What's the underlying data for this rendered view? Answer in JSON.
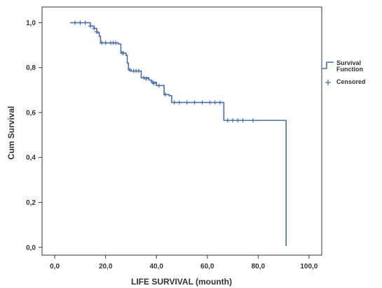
{
  "chart_data": {
    "type": "line",
    "title": "",
    "xlabel": "LIFE SURVIVAL (mounth)",
    "ylabel": "Cum Survival",
    "xlim": [
      -5,
      105
    ],
    "ylim": [
      -0.035,
      1.07
    ],
    "x_ticks": [
      0,
      20,
      40,
      60,
      80,
      100
    ],
    "x_tick_labels": [
      "0,0",
      "20,0",
      "40,0",
      "60,0",
      "80,0",
      "100,0"
    ],
    "y_ticks": [
      0,
      0.2,
      0.4,
      0.6,
      0.8,
      1.0
    ],
    "y_tick_labels": [
      "0,0",
      "0,2",
      "0,4",
      "0,6",
      "0,8",
      "1,0"
    ],
    "grid": false,
    "legend_position": "right",
    "series": [
      {
        "name": "Survival Function",
        "steps": [
          [
            6,
            1.0
          ],
          [
            14,
            0.985
          ],
          [
            15.5,
            0.975
          ],
          [
            16.5,
            0.955
          ],
          [
            17.5,
            0.94
          ],
          [
            18,
            0.91
          ],
          [
            25,
            0.905
          ],
          [
            26,
            0.865
          ],
          [
            28,
            0.855
          ],
          [
            28.5,
            0.82
          ],
          [
            29,
            0.79
          ],
          [
            30,
            0.785
          ],
          [
            34,
            0.755
          ],
          [
            37,
            0.745
          ],
          [
            38,
            0.735
          ],
          [
            40,
            0.72
          ],
          [
            43,
            0.68
          ],
          [
            45,
            0.675
          ],
          [
            46,
            0.645
          ],
          [
            66.5,
            0.565
          ],
          [
            91,
            0.005
          ]
        ],
        "end_x": 91
      },
      {
        "name": "Censored",
        "points": [
          [
            8,
            1.0
          ],
          [
            10,
            1.0
          ],
          [
            12,
            1.0
          ],
          [
            14,
            0.985
          ],
          [
            15.5,
            0.975
          ],
          [
            16.5,
            0.96
          ],
          [
            18.5,
            0.91
          ],
          [
            20,
            0.91
          ],
          [
            22,
            0.91
          ],
          [
            23,
            0.91
          ],
          [
            24,
            0.91
          ],
          [
            26.5,
            0.865
          ],
          [
            27,
            0.865
          ],
          [
            29.5,
            0.79
          ],
          [
            31,
            0.785
          ],
          [
            32,
            0.785
          ],
          [
            33,
            0.785
          ],
          [
            35,
            0.755
          ],
          [
            36,
            0.75
          ],
          [
            38.5,
            0.735
          ],
          [
            39,
            0.73
          ],
          [
            41,
            0.72
          ],
          [
            43.5,
            0.68
          ],
          [
            47,
            0.645
          ],
          [
            49,
            0.645
          ],
          [
            52,
            0.645
          ],
          [
            55,
            0.645
          ],
          [
            58,
            0.645
          ],
          [
            61,
            0.645
          ],
          [
            63,
            0.645
          ],
          [
            65,
            0.645
          ],
          [
            68,
            0.565
          ],
          [
            70,
            0.565
          ],
          [
            72,
            0.565
          ],
          [
            74,
            0.565
          ],
          [
            78,
            0.565
          ]
        ]
      }
    ]
  },
  "colors": {
    "survival_line": "#4a6fa5",
    "censored_marker": "#4a6fa5",
    "frame": "#333333",
    "text": "#333333"
  },
  "legend": {
    "survival_label_line1": "Survival",
    "survival_label_line2": "Function",
    "censored_label": "Censored"
  }
}
